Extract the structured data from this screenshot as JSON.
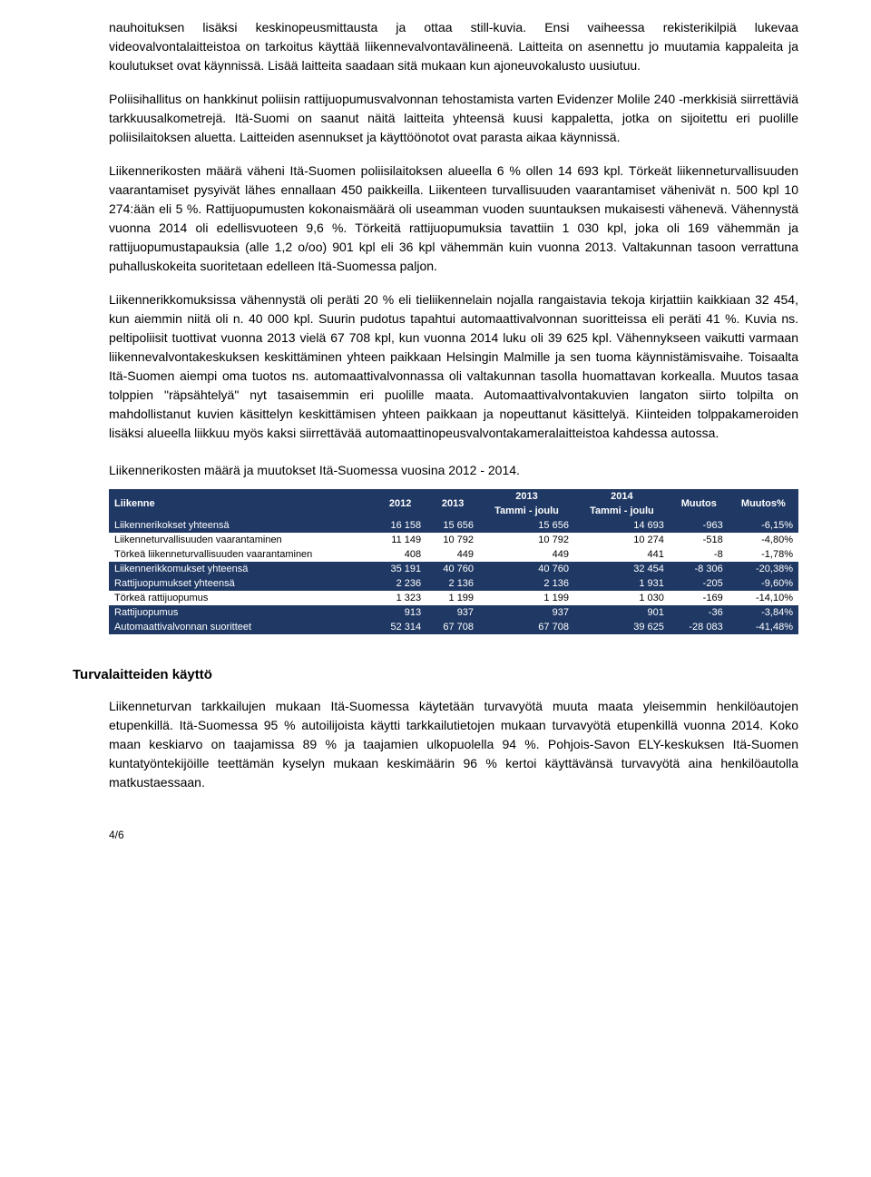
{
  "paragraphs": {
    "p1": "nauhoituksen lisäksi keskinopeusmittausta ja ottaa still-kuvia. Ensi vaiheessa rekisterikilpiä lukevaa videovalvontalaitteistoa on tarkoitus käyttää liikennevalvontavälineenä. Laitteita on asennettu jo muutamia kappaleita ja koulutukset ovat käynnissä. Lisää laitteita saadaan sitä mukaan kun ajoneuvokalusto uusiutuu.",
    "p2": "Poliisihallitus on hankkinut poliisin rattijuopumusvalvonnan tehostamista varten Evidenzer Molile 240 -merkkisiä siirrettäviä tarkkuusalkometrejä. Itä-Suomi on saanut näitä laitteita yhteensä kuusi kappaletta, jotka on sijoitettu eri puolille poliisilaitoksen aluetta. Laitteiden asennukset ja käyttöönotot ovat parasta aikaa käynnissä.",
    "p3": "Liikennerikosten määrä väheni Itä-Suomen poliisilaitoksen alueella 6 % ollen 14 693 kpl. Törkeät liikenneturvallisuuden vaarantamiset pysyivät lähes ennallaan 450 paikkeilla. Liikenteen turvallisuuden vaarantamiset vähenivät n. 500 kpl 10 274:ään eli 5 %. Rattijuopumusten kokonaismäärä oli useamman vuoden suuntauksen mukaisesti vähenevä. Vähennystä vuonna 2014 oli edellisvuoteen 9,6 %. Törkeitä rattijuopumuksia tavattiin 1 030 kpl, joka oli 169 vähemmän ja rattijuopumustapauksia (alle 1,2 o/oo) 901 kpl eli 36 kpl vähemmän kuin vuonna 2013. Valtakunnan tasoon verrattuna puhalluskokeita suoritetaan edelleen Itä-Suomessa paljon.",
    "p4": "Liikennerikkomuksissa vähennystä oli peräti 20 % eli tieliikennelain nojalla rangaistavia tekoja kirjattiin kaikkiaan 32 454, kun aiemmin niitä oli n. 40 000 kpl. Suurin pudotus tapahtui automaattivalvonnan suoritteissa eli peräti 41 %. Kuvia ns. peltipoliisit tuottivat vuonna 2013 vielä 67 708 kpl, kun vuonna 2014 luku oli 39 625 kpl. Vähennykseen vaikutti varmaan liikennevalvontakeskuksen keskittäminen yhteen paikkaan Helsingin Malmille ja sen tuoma käynnistämisvaihe. Toisaalta Itä-Suomen aiempi oma tuotos ns. automaattivalvonnassa oli valtakunnan tasolla huomattavan korkealla. Muutos tasaa tolppien \"räpsähtelyä\" nyt tasaisemmin eri puolille maata. Automaattivalvontakuvien langaton siirto tolpilta on mahdollistanut kuvien käsittelyn keskittämisen yhteen paikkaan ja nopeuttanut käsittelyä. Kiinteiden tolppakameroiden lisäksi alueella liikkuu myös kaksi siirrettävää automaattinopeusvalvontakameralaitteistoa kahdessa autossa.",
    "caption": "Liikennerikosten määrä ja muutokset Itä-Suomessa vuosina 2012 - 2014.",
    "p5": "Liikenneturvan tarkkailujen mukaan Itä-Suomessa käytetään turvavyötä muuta maata yleisemmin henkilöautojen etupenkillä. Itä-Suomessa 95 % autoilijoista käytti tarkkailutietojen mukaan turvavyötä etupenkillä vuonna 2014. Koko maan keskiarvo on taajamissa 89 % ja taajamien ulkopuolella 94 %. Pohjois-Savon ELY-keskuksen Itä-Suomen kuntatyöntekijöille teettämän kyselyn mukaan keskimäärin 96 % kertoi käyttävänsä turvavyötä aina henkilöautolla matkustaessaan."
  },
  "section_heading": "Turvalaitteiden käyttö",
  "page_number": "4/6",
  "table": {
    "header": {
      "group_label": "Liikenne",
      "col_2012": "2012",
      "col_2013": "2013",
      "col_2013b": "2013",
      "col_2014": "2014",
      "sub_2013": "Tammi - joulu",
      "sub_2014": "Tammi - joulu",
      "col_muutos": "Muutos",
      "col_muutos_pct": "Muutos%"
    },
    "rows": [
      {
        "label": "Liikennerikokset yhteensä",
        "v2012": "16 158",
        "v2013": "15 656",
        "v2013b": "15 656",
        "v2014": "14 693",
        "muutos": "-963",
        "muutos_pct": "-6,15%",
        "stripe": "dark"
      },
      {
        "label": "Liikenneturvallisuuden vaarantaminen",
        "v2012": "11 149",
        "v2013": "10 792",
        "v2013b": "10 792",
        "v2014": "10 274",
        "muutos": "-518",
        "muutos_pct": "-4,80%",
        "stripe": "light"
      },
      {
        "label": "Törkeä liikenneturvallisuuden vaarantaminen",
        "v2012": "408",
        "v2013": "449",
        "v2013b": "449",
        "v2014": "441",
        "muutos": "-8",
        "muutos_pct": "-1,78%",
        "stripe": "light"
      },
      {
        "label": "Liikennerikkomukset yhteensä",
        "v2012": "35 191",
        "v2013": "40 760",
        "v2013b": "40 760",
        "v2014": "32 454",
        "muutos": "-8 306",
        "muutos_pct": "-20,38%",
        "stripe": "dark"
      },
      {
        "label": "Rattijuopumukset yhteensä",
        "v2012": "2 236",
        "v2013": "2 136",
        "v2013b": "2 136",
        "v2014": "1 931",
        "muutos": "-205",
        "muutos_pct": "-9,60%",
        "stripe": "dark"
      },
      {
        "label": "Törkeä rattijuopumus",
        "v2012": "1 323",
        "v2013": "1 199",
        "v2013b": "1 199",
        "v2014": "1 030",
        "muutos": "-169",
        "muutos_pct": "-14,10%",
        "stripe": "light"
      },
      {
        "label": "Rattijuopumus",
        "v2012": "913",
        "v2013": "937",
        "v2013b": "937",
        "v2014": "901",
        "muutos": "-36",
        "muutos_pct": "-3,84%",
        "stripe": "dark"
      },
      {
        "label": "Automaattivalvonnan suoritteet",
        "v2012": "52 314",
        "v2013": "67 708",
        "v2013b": "67 708",
        "v2014": "39 625",
        "muutos": "-28 083",
        "muutos_pct": "-41,48%",
        "stripe": "dark"
      }
    ],
    "colors": {
      "header_bg": "#1f3864",
      "header_fg": "#ffffff",
      "dark_bg": "#1f3864",
      "dark_fg": "#ffffff",
      "light_bg": "#ffffff",
      "light_fg": "#000000"
    }
  }
}
